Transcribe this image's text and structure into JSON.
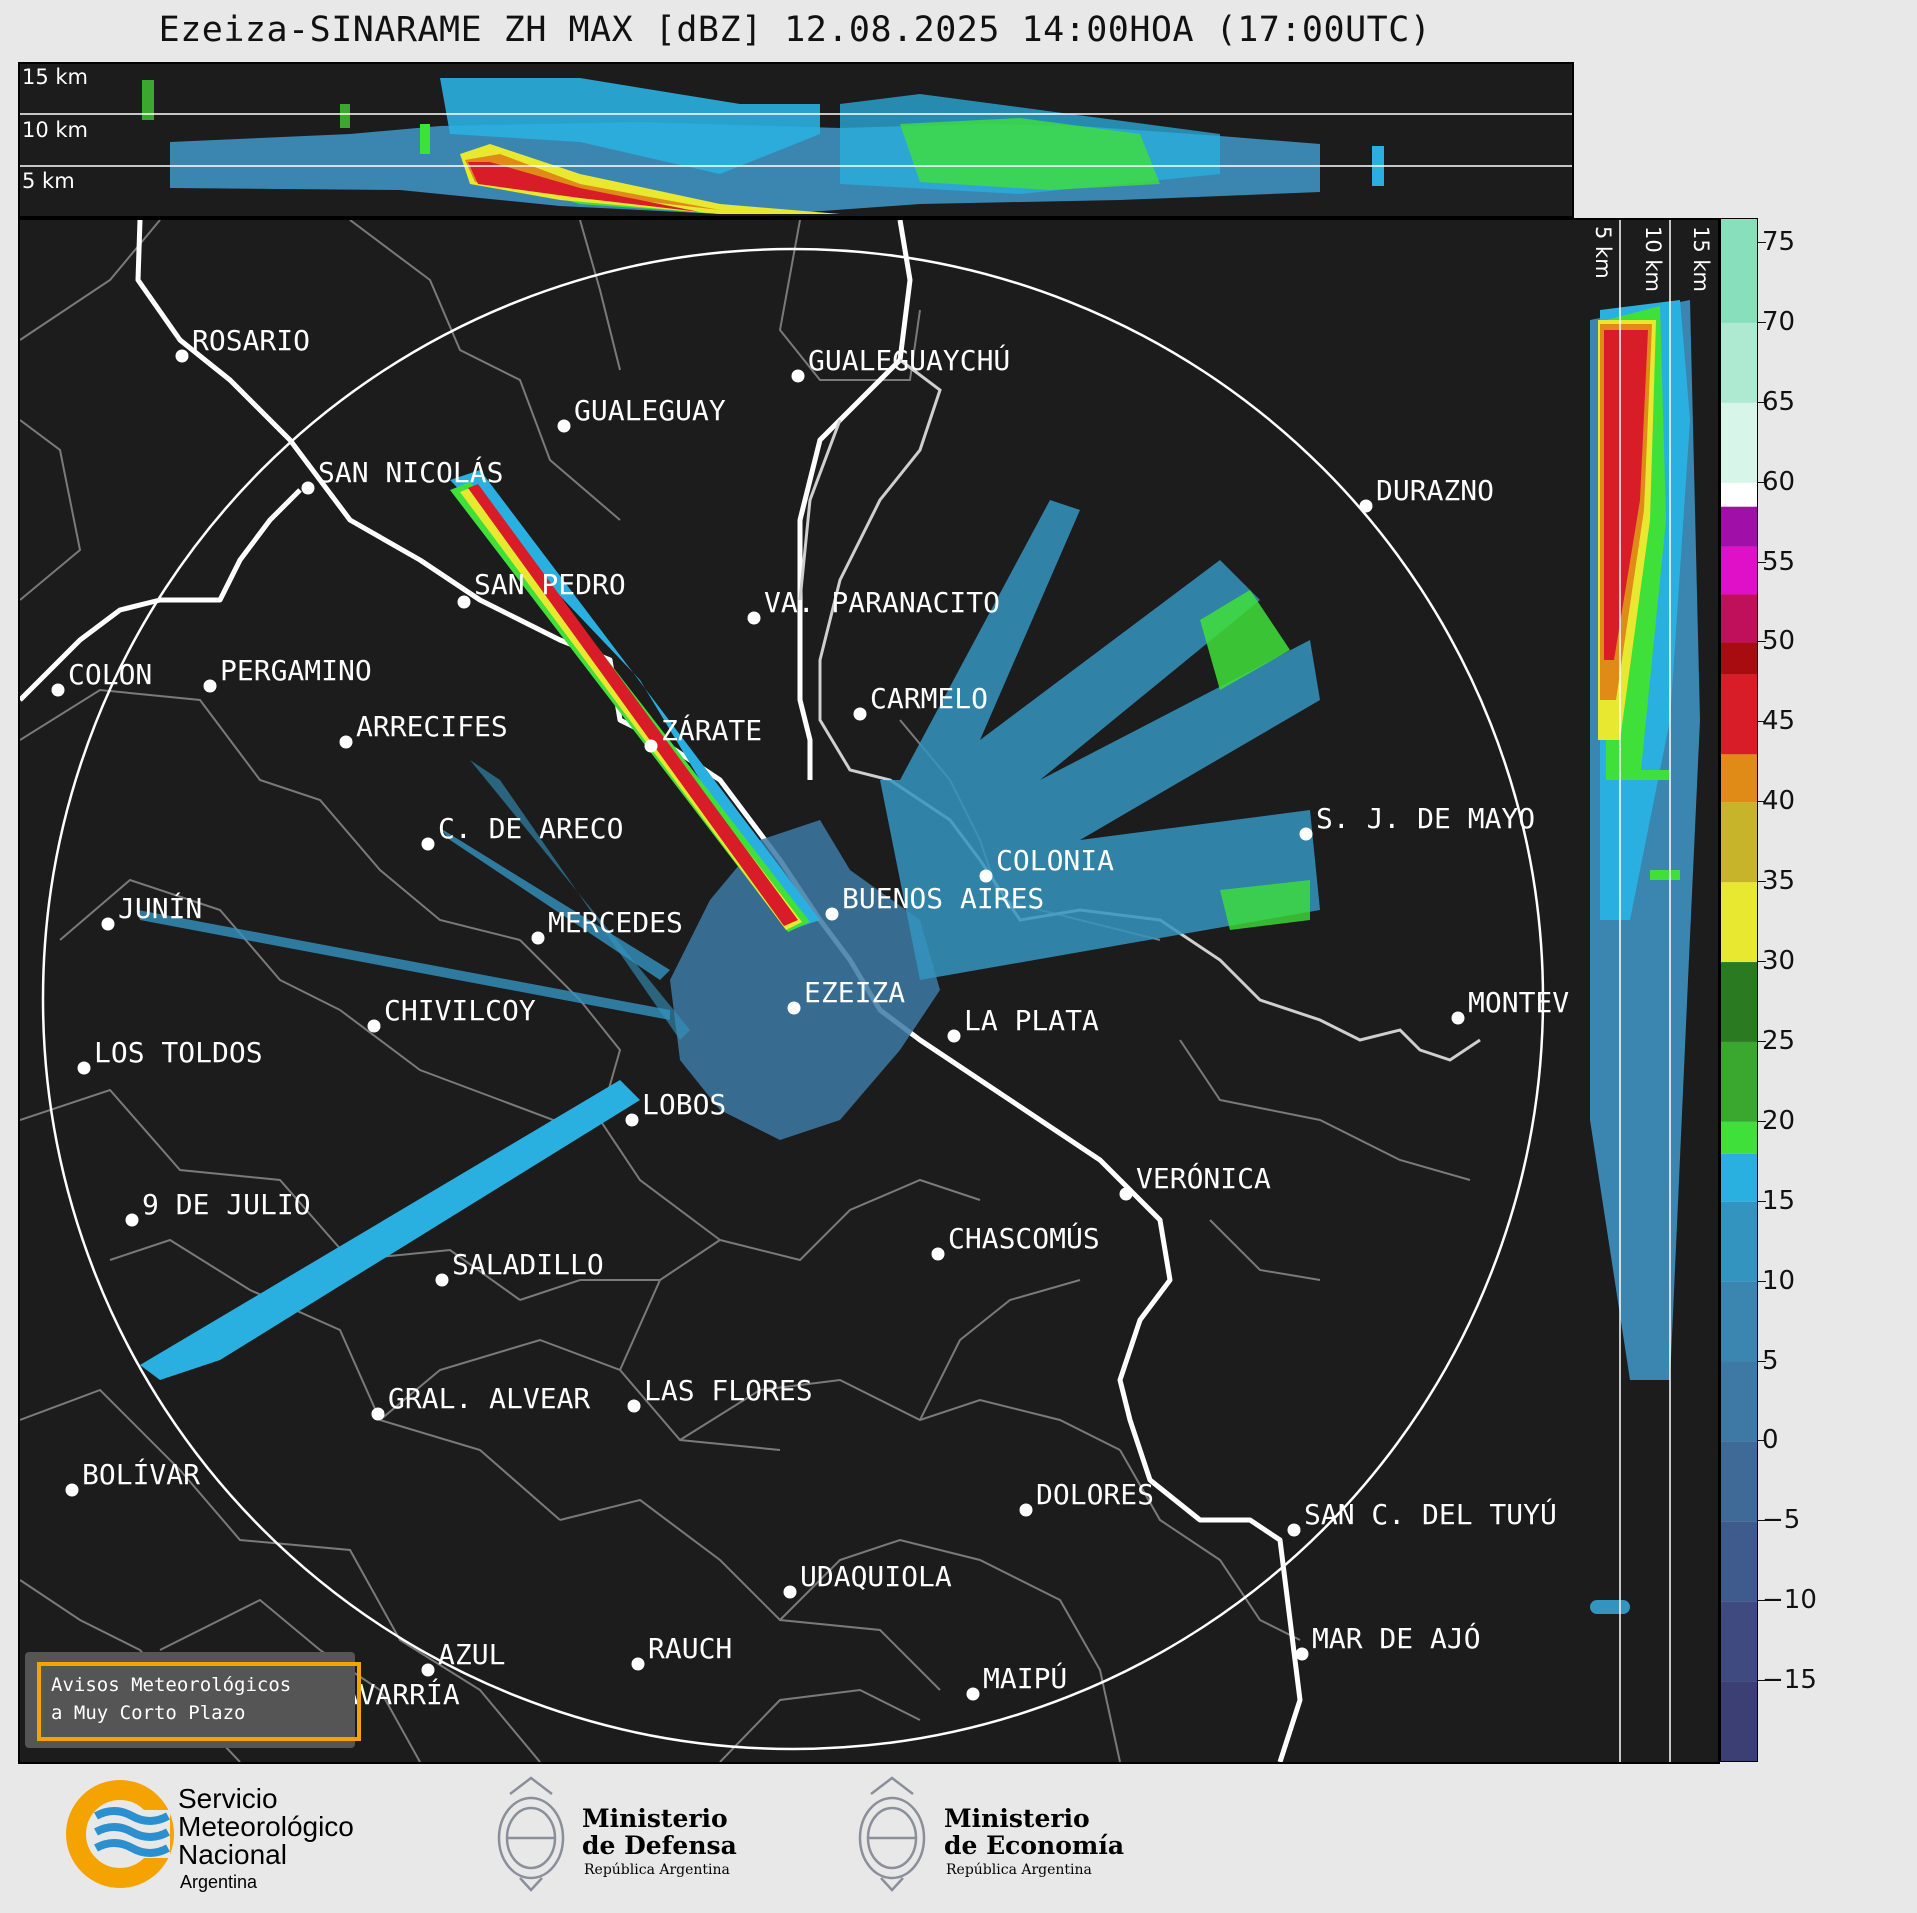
{
  "title": "Ezeiza-SINARAME ZH MAX [dBZ] 12.08.2025 14:00HOA (17:00UTC)",
  "top_strip": {
    "altitude_labels": [
      "15 km",
      "10 km",
      "5 km"
    ]
  },
  "side_strip": {
    "altitude_labels": [
      "5 km",
      "10 km",
      "15 km"
    ]
  },
  "colorbar": {
    "unit": "dBZ",
    "tick_labels": [
      "75",
      "70",
      "65",
      "60",
      "55",
      "50",
      "45",
      "40",
      "35",
      "30",
      "25",
      "20",
      "15",
      "10",
      "5",
      "0",
      "−5",
      "−10",
      "−15"
    ],
    "range": [
      -20,
      76.5
    ],
    "colors": [
      {
        "from": -20,
        "to": -15,
        "color": "#3c3f73"
      },
      {
        "from": -15,
        "to": -10,
        "color": "#3e4a80"
      },
      {
        "from": -10,
        "to": -5,
        "color": "#3f5a8c"
      },
      {
        "from": -5,
        "to": 0,
        "color": "#3f6a98"
      },
      {
        "from": 0,
        "to": 5,
        "color": "#3d79a4"
      },
      {
        "from": 5,
        "to": 10,
        "color": "#3a86b0"
      },
      {
        "from": 10,
        "to": 15,
        "color": "#3494c0"
      },
      {
        "from": 15,
        "to": 18,
        "color": "#2ab0e0"
      },
      {
        "from": 18,
        "to": 20,
        "color": "#3fe03a"
      },
      {
        "from": 20,
        "to": 25,
        "color": "#3aa82e"
      },
      {
        "from": 25,
        "to": 30,
        "color": "#2a7a22"
      },
      {
        "from": 30,
        "to": 35,
        "color": "#e8e830"
      },
      {
        "from": 35,
        "to": 40,
        "color": "#c8b42a"
      },
      {
        "from": 40,
        "to": 43,
        "color": "#e08a18"
      },
      {
        "from": 43,
        "to": 48,
        "color": "#d81c28"
      },
      {
        "from": 48,
        "to": 50,
        "color": "#a80c10"
      },
      {
        "from": 50,
        "to": 53,
        "color": "#c0105c"
      },
      {
        "from": 53,
        "to": 56,
        "color": "#e010c8"
      },
      {
        "from": 56,
        "to": 58.5,
        "color": "#a010a8"
      },
      {
        "from": 58.5,
        "to": 60,
        "color": "#ffffff"
      },
      {
        "from": 60,
        "to": 65,
        "color": "#d8f5ea"
      },
      {
        "from": 65,
        "to": 70,
        "color": "#aeead2"
      },
      {
        "from": 70,
        "to": 76.5,
        "color": "#88dfbc"
      }
    ]
  },
  "cities": [
    {
      "name": "ROSARIO"
    },
    {
      "name": "GUALEGUAYCHÚ"
    },
    {
      "name": "GUALEGUAY"
    },
    {
      "name": "SAN NICOLÁS"
    },
    {
      "name": "DURAZNO"
    },
    {
      "name": "SAN PEDRO"
    },
    {
      "name": "VA. PARANACITO"
    },
    {
      "name": "COLON"
    },
    {
      "name": "PERGAMINO"
    },
    {
      "name": "CARMELO"
    },
    {
      "name": "ARRECIFES"
    },
    {
      "name": "ZÁRATE"
    },
    {
      "name": "C. DE ARECO"
    },
    {
      "name": "S. J. DE MAYO"
    },
    {
      "name": "COLONIA"
    },
    {
      "name": "JUNÍN"
    },
    {
      "name": "BUENOS AIRES"
    },
    {
      "name": "MERCEDES"
    },
    {
      "name": "EZEIZA"
    },
    {
      "name": "MONTEVIDEO"
    },
    {
      "name": "CHIVILCOY"
    },
    {
      "name": "LA PLATA"
    },
    {
      "name": "LOS TOLDOS"
    },
    {
      "name": "LOBOS"
    },
    {
      "name": "VERÓNICA"
    },
    {
      "name": "9 DE JULIO"
    },
    {
      "name": "CHASCOMÚS"
    },
    {
      "name": "SALADILLO"
    },
    {
      "name": "GRAL. ALVEAR"
    },
    {
      "name": "LAS FLORES"
    },
    {
      "name": "BOLÍVAR"
    },
    {
      "name": "DOLORES"
    },
    {
      "name": "SAN C. DEL TUYÚ"
    },
    {
      "name": "UDAQUIOLA"
    },
    {
      "name": "MAR DE AJÓ"
    },
    {
      "name": "AZUL"
    },
    {
      "name": "RAUCH"
    },
    {
      "name": "MAIPÚ"
    },
    {
      "name": "OLAVARRÍA"
    }
  ],
  "warning_box": {
    "line1": "Avisos Meteorológicos",
    "line2": "a Muy Corto Plazo"
  },
  "footer": {
    "smn": {
      "line1": "Servicio",
      "line2": "Meteorológico",
      "line3": "Nacional",
      "line4": "Argentina"
    },
    "defensa": {
      "line1": "Ministerio",
      "line2": "de Defensa",
      "line3": "República Argentina"
    },
    "economia": {
      "line1": "Ministerio",
      "line2": "de Economía",
      "line3": "República Argentina"
    }
  }
}
